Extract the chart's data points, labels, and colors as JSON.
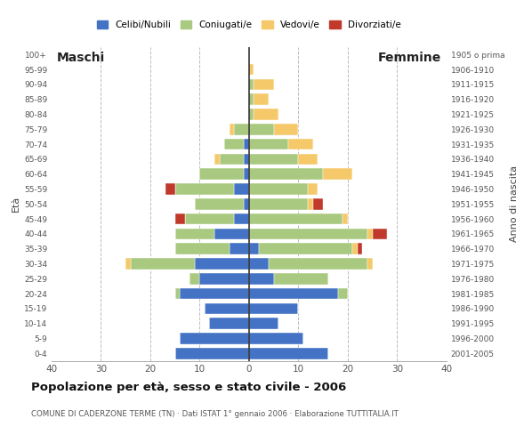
{
  "age_groups": [
    "0-4",
    "5-9",
    "10-14",
    "15-19",
    "20-24",
    "25-29",
    "30-34",
    "35-39",
    "40-44",
    "45-49",
    "50-54",
    "55-59",
    "60-64",
    "65-69",
    "70-74",
    "75-79",
    "80-84",
    "85-89",
    "90-94",
    "95-99",
    "100+"
  ],
  "birth_years": [
    "2001-2005",
    "1996-2000",
    "1991-1995",
    "1986-1990",
    "1981-1985",
    "1976-1980",
    "1971-1975",
    "1966-1970",
    "1961-1965",
    "1956-1960",
    "1951-1955",
    "1946-1950",
    "1941-1945",
    "1936-1940",
    "1931-1935",
    "1926-1930",
    "1921-1925",
    "1916-1920",
    "1911-1915",
    "1906-1910",
    "1905 o prima"
  ],
  "male": {
    "celibi": [
      15,
      14,
      8,
      9,
      14,
      10,
      11,
      4,
      7,
      3,
      1,
      3,
      1,
      1,
      1,
      0,
      0,
      0,
      0,
      0,
      0
    ],
    "coniugati": [
      0,
      0,
      0,
      0,
      1,
      2,
      13,
      11,
      8,
      10,
      10,
      12,
      9,
      5,
      4,
      3,
      0,
      0,
      0,
      0,
      0
    ],
    "vedovi": [
      0,
      0,
      0,
      0,
      0,
      0,
      1,
      0,
      0,
      0,
      0,
      0,
      0,
      1,
      0,
      1,
      0,
      0,
      0,
      0,
      0
    ],
    "divorziati": [
      0,
      0,
      0,
      0,
      0,
      0,
      0,
      0,
      0,
      2,
      0,
      2,
      0,
      0,
      0,
      0,
      0,
      0,
      0,
      0,
      0
    ]
  },
  "female": {
    "nubili": [
      16,
      11,
      6,
      10,
      18,
      5,
      4,
      2,
      0,
      0,
      0,
      0,
      0,
      0,
      0,
      0,
      0,
      0,
      0,
      0,
      0
    ],
    "coniugate": [
      0,
      0,
      0,
      0,
      2,
      11,
      20,
      19,
      24,
      19,
      12,
      12,
      15,
      10,
      8,
      5,
      1,
      1,
      1,
      0,
      0
    ],
    "vedove": [
      0,
      0,
      0,
      0,
      0,
      0,
      1,
      1,
      1,
      1,
      1,
      2,
      6,
      4,
      5,
      5,
      5,
      3,
      4,
      1,
      0
    ],
    "divorziate": [
      0,
      0,
      0,
      0,
      0,
      0,
      0,
      1,
      3,
      0,
      2,
      0,
      0,
      0,
      0,
      0,
      0,
      0,
      0,
      0,
      0
    ]
  },
  "colors": {
    "celibi": "#4472c4",
    "coniugati": "#a8c97f",
    "vedovi": "#f5c96a",
    "divorziati": "#c0392b"
  },
  "xlim": 40,
  "title": "Popolazione per età, sesso e stato civile - 2006",
  "subtitle": "COMUNE DI CADERZONE TERME (TN) · Dati ISTAT 1° gennaio 2006 · Elaborazione TUTTITALIA.IT",
  "ylabel_left": "Età",
  "ylabel_right": "Anno di nascita",
  "label_maschi": "Maschi",
  "label_femmine": "Femmine",
  "legend_labels": [
    "Celibi/Nubili",
    "Coniugati/e",
    "Vedovi/e",
    "Divorziati/e"
  ],
  "bar_height": 0.75
}
